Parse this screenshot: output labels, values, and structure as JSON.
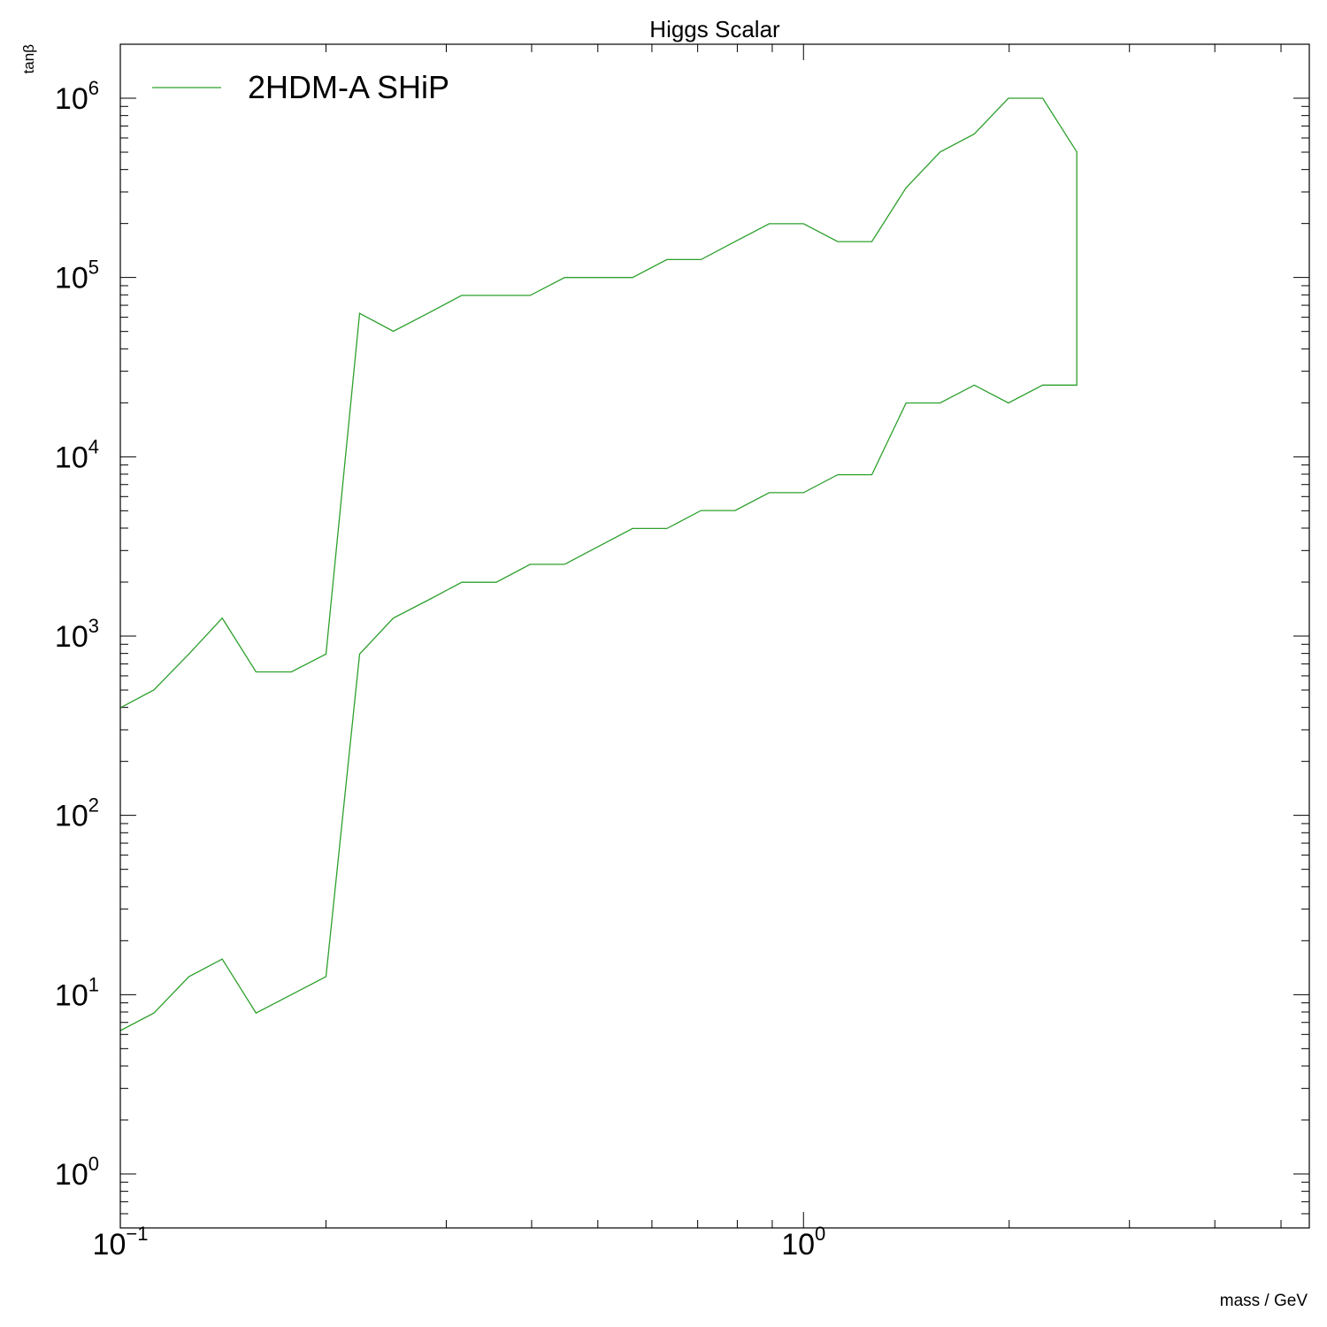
{
  "chart_data": {
    "type": "line",
    "title": "Higgs Scalar",
    "xlabel": "mass / GeV",
    "ylabel": "tanβ",
    "xscale": "log",
    "yscale": "log",
    "xlim": [
      0.1,
      5.5
    ],
    "ylim": [
      0.5,
      2000000
    ],
    "x_ticks": [
      {
        "base": "10",
        "exp": "−1",
        "value": 0.1
      },
      {
        "base": "10",
        "exp": "0",
        "value": 1
      }
    ],
    "y_ticks": [
      {
        "base": "10",
        "exp": "0",
        "value": 1
      },
      {
        "base": "10",
        "exp": "1",
        "value": 10
      },
      {
        "base": "10",
        "exp": "2",
        "value": 100
      },
      {
        "base": "10",
        "exp": "3",
        "value": 1000
      },
      {
        "base": "10",
        "exp": "4",
        "value": 10000
      },
      {
        "base": "10",
        "exp": "5",
        "value": 100000
      },
      {
        "base": "10",
        "exp": "6",
        "value": 1000000
      }
    ],
    "grid": false,
    "legend_position": "top-left",
    "series": [
      {
        "name": "2HDM-A SHiP",
        "color": "#2ca02c",
        "x": [
          0.1,
          0.112,
          0.126,
          0.141,
          0.158,
          0.178,
          0.2,
          0.224,
          0.251,
          0.282,
          0.316,
          0.355,
          0.398,
          0.447,
          0.501,
          0.562,
          0.631,
          0.708,
          0.794,
          0.891,
          1.0,
          1.122,
          1.259,
          1.413,
          1.585,
          1.778,
          1.995,
          2.239,
          2.512,
          2.512,
          2.239,
          1.995,
          1.778,
          1.585,
          1.413,
          1.259,
          1.122,
          1.0,
          0.891,
          0.794,
          0.708,
          0.631,
          0.562,
          0.501,
          0.447,
          0.398,
          0.355,
          0.316,
          0.282,
          0.251,
          0.224,
          0.2,
          0.178,
          0.158,
          0.141,
          0.126,
          0.112,
          0.1
        ],
        "y": [
          6.3,
          7.9,
          12.6,
          15.8,
          7.9,
          10.0,
          12.6,
          794,
          1259,
          1585,
          1995,
          1995,
          2512,
          2512,
          3162,
          3981,
          3981,
          5012,
          5012,
          6310,
          6310,
          7943,
          7943,
          19953,
          19953,
          25119,
          19953,
          25119,
          25119,
          501187,
          1000000,
          1000000,
          630957,
          501187,
          316228,
          158489,
          158489,
          199526,
          199526,
          158489,
          125893,
          125893,
          100000,
          100000,
          100000,
          79433,
          79433,
          79433,
          63096,
          50119,
          63096,
          794,
          631,
          631,
          1259,
          794,
          501,
          398
        ]
      }
    ]
  }
}
